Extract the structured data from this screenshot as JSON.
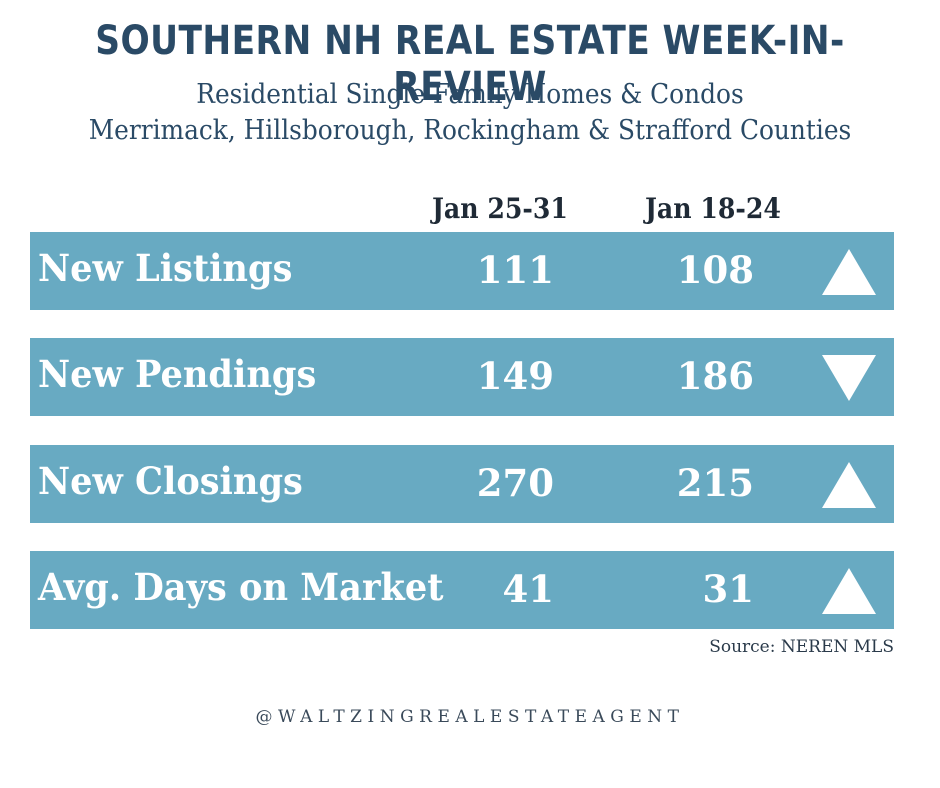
{
  "header": {
    "title": "Southern NH Real Estate Week-in-Review",
    "subtitle_line1": "Residential Single Family Homes & Condos",
    "subtitle_line2": "Merrimack, Hillsborough, Rockingham & Strafford Counties"
  },
  "table": {
    "columns": [
      "Jan 25-31",
      "Jan 18-24"
    ],
    "rows": [
      {
        "label": "New Listings",
        "current": "111",
        "previous": "108",
        "trend": "up",
        "trend_icon": "triangle-up-icon"
      },
      {
        "label": "New Pendings",
        "current": "149",
        "previous": "186",
        "trend": "down",
        "trend_icon": "triangle-down-icon"
      },
      {
        "label": "New Closings",
        "current": "270",
        "previous": "215",
        "trend": "up",
        "trend_icon": "triangle-up-icon"
      },
      {
        "label": "Avg. Days on Market",
        "current": "41",
        "previous": "31",
        "trend": "up",
        "trend_icon": "triangle-up-icon"
      }
    ]
  },
  "footer": {
    "source": "Source: NEREN MLS",
    "handle": "@WALTZINGREALESTATEAGENT"
  },
  "colors": {
    "title": "#2a4a66",
    "row_background": "#68aac2",
    "row_text": "#ffffff"
  }
}
